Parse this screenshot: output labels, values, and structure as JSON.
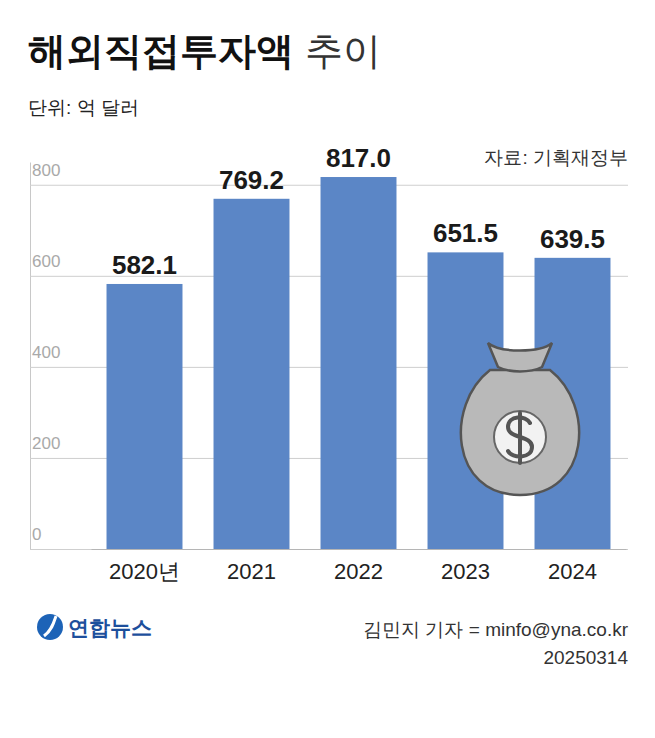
{
  "chart_data": {
    "type": "bar",
    "title": "해외직접투자액 추이",
    "subtitle": "단위: 억 달러",
    "source": "자료: 기획재정부",
    "annotations": [
      "연합뉴스",
      "김민지 기자 = minfo@yna.co.kr",
      "20250314"
    ],
    "categories": [
      "2020년",
      "2021",
      "2022",
      "2023",
      "2024"
    ],
    "values": [
      582.1,
      769.2,
      817.0,
      651.5,
      639.5
    ],
    "value_labels": [
      "582.1",
      "769.2",
      "817.0",
      "651.5",
      "639.5"
    ],
    "color": "#5b86c6",
    "ylim": [
      0,
      850
    ],
    "yticks": [
      0,
      200,
      400,
      600,
      800
    ],
    "grid": true,
    "data_labels": true
  }
}
